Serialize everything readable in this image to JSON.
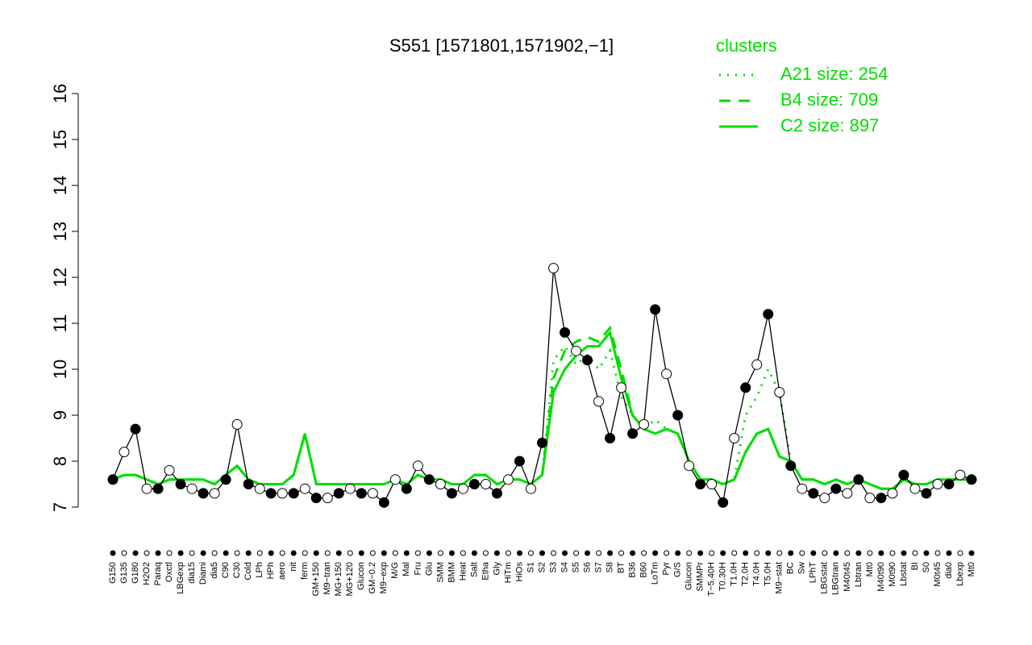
{
  "chart_data": {
    "type": "line",
    "title": "S551 [1571801,1571902,−1]",
    "legend_title": "clusters",
    "legend_position": "top-right",
    "categories": [
      "G150",
      "G135",
      "G180",
      "H2O2",
      "Paraq",
      "Oxctl",
      "LBGexp",
      "dia15",
      "Diami",
      "dia5",
      "C90",
      "C30",
      "Cold",
      "LPh",
      "HPh",
      "aero",
      "nit",
      "ferm",
      "GM+150",
      "M9−tran",
      "MG+150",
      "MG+120",
      "Glucon",
      "GM−0.2",
      "M9−exp",
      "M/G",
      "Mal",
      "Fru",
      "Glu",
      "SMM",
      "BMM",
      "Heat",
      "Salt",
      "Etha",
      "Gly",
      "HiTm",
      "HiOs",
      "S1",
      "S2",
      "S3",
      "S4",
      "S5",
      "S6",
      "S7",
      "S8",
      "BT",
      "B36",
      "B60",
      "LoTm",
      "Pyr",
      "G/S",
      "Glucon",
      "SMMPr",
      "T−5.40H",
      "T0.30H",
      "T1.0H",
      "T2.0H",
      "T4.0H",
      "T5.0H",
      "M9−stat",
      "BC",
      "Sw",
      "LPhT",
      "LBGstat",
      "LBGtran",
      "M40t45",
      "Lbtran",
      "Mt0",
      "M40t90",
      "M0t90",
      "Lbstat",
      "BI",
      "S0",
      "M0t45",
      "dia0",
      "Lbexp",
      "Mt0"
    ],
    "values": [
      7.6,
      8.2,
      8.7,
      7.4,
      7.4,
      7.8,
      7.5,
      7.4,
      7.3,
      7.3,
      7.6,
      8.8,
      7.5,
      7.4,
      7.3,
      7.3,
      7.3,
      7.4,
      7.2,
      7.2,
      7.3,
      7.4,
      7.3,
      7.3,
      7.1,
      7.6,
      7.4,
      7.9,
      7.6,
      7.5,
      7.3,
      7.4,
      7.5,
      7.5,
      7.3,
      7.6,
      8.0,
      7.4,
      8.4,
      12.2,
      10.8,
      10.4,
      10.2,
      9.3,
      8.5,
      9.6,
      8.6,
      8.8,
      11.3,
      9.9,
      9.0,
      7.9,
      7.5,
      7.5,
      7.1,
      8.5,
      9.6,
      10.1,
      11.2,
      9.5,
      7.9,
      7.4,
      7.3,
      7.2,
      7.4,
      7.3,
      7.6,
      7.2,
      7.2,
      7.3,
      7.7,
      7.4,
      7.3,
      7.5,
      7.5,
      7.7,
      7.6
    ],
    "color": "#000000",
    "series": [
      {
        "name": "A21 size: 254",
        "color": "#00dd00",
        "dash": "dotted",
        "values": [
          7.6,
          7.7,
          7.7,
          7.6,
          7.5,
          7.6,
          7.6,
          7.6,
          7.6,
          7.5,
          7.7,
          7.9,
          7.6,
          7.5,
          7.5,
          7.5,
          7.7,
          8.6,
          7.5,
          7.5,
          7.5,
          7.5,
          7.5,
          7.5,
          7.5,
          7.6,
          7.5,
          7.7,
          7.6,
          7.6,
          7.5,
          7.5,
          7.7,
          7.7,
          7.5,
          7.6,
          7.6,
          7.5,
          7.7,
          10.2,
          10.5,
          10.1,
          10.3,
          10.0,
          10.4,
          9.4,
          9.0,
          8.7,
          8.9,
          8.7,
          8.6,
          8.0,
          7.6,
          7.6,
          7.5,
          7.6,
          9.0,
          9.4,
          10.0,
          9.5,
          8.0,
          7.6,
          7.6,
          7.5,
          7.6,
          7.5,
          7.6,
          7.5,
          7.4,
          7.4,
          7.6,
          7.5,
          7.5,
          7.6,
          7.6,
          7.6,
          7.6
        ]
      },
      {
        "name": "B4 size: 709",
        "color": "#00dd00",
        "dash": "dashed",
        "values": [
          7.6,
          7.7,
          7.7,
          7.6,
          7.5,
          7.6,
          7.6,
          7.6,
          7.6,
          7.5,
          7.7,
          7.9,
          7.6,
          7.5,
          7.5,
          7.5,
          7.7,
          8.6,
          7.5,
          7.5,
          7.5,
          7.5,
          7.5,
          7.5,
          7.5,
          7.6,
          7.5,
          7.7,
          7.6,
          7.6,
          7.5,
          7.5,
          7.7,
          7.7,
          7.5,
          7.6,
          7.6,
          7.5,
          7.7,
          9.8,
          10.4,
          10.6,
          10.7,
          10.6,
          10.9,
          10.0,
          9.0,
          8.7,
          8.6,
          8.7,
          8.6,
          8.0,
          7.6,
          7.6,
          7.5,
          7.6,
          8.2,
          8.6,
          8.7,
          8.1,
          8.0,
          7.6,
          7.6,
          7.5,
          7.6,
          7.5,
          7.6,
          7.5,
          7.4,
          7.4,
          7.6,
          7.5,
          7.5,
          7.6,
          7.6,
          7.6,
          7.6
        ]
      },
      {
        "name": "C2 size: 897",
        "color": "#00dd00",
        "dash": "solid",
        "values": [
          7.6,
          7.7,
          7.7,
          7.6,
          7.5,
          7.6,
          7.6,
          7.6,
          7.6,
          7.5,
          7.7,
          7.9,
          7.6,
          7.5,
          7.5,
          7.5,
          7.7,
          8.6,
          7.5,
          7.5,
          7.5,
          7.5,
          7.5,
          7.5,
          7.5,
          7.6,
          7.5,
          7.7,
          7.6,
          7.6,
          7.5,
          7.5,
          7.7,
          7.7,
          7.5,
          7.6,
          7.6,
          7.5,
          7.7,
          9.5,
          10.0,
          10.3,
          10.5,
          10.5,
          10.8,
          9.8,
          9.0,
          8.7,
          8.6,
          8.7,
          8.6,
          8.0,
          7.6,
          7.6,
          7.5,
          7.6,
          8.2,
          8.6,
          8.7,
          8.1,
          8.0,
          7.6,
          7.6,
          7.5,
          7.6,
          7.5,
          7.6,
          7.5,
          7.4,
          7.4,
          7.6,
          7.5,
          7.5,
          7.6,
          7.6,
          7.6,
          7.6
        ]
      }
    ],
    "ylim": [
      7,
      16
    ],
    "yticks": [
      7,
      8,
      9,
      10,
      11,
      12,
      13,
      14,
      15,
      16
    ]
  }
}
